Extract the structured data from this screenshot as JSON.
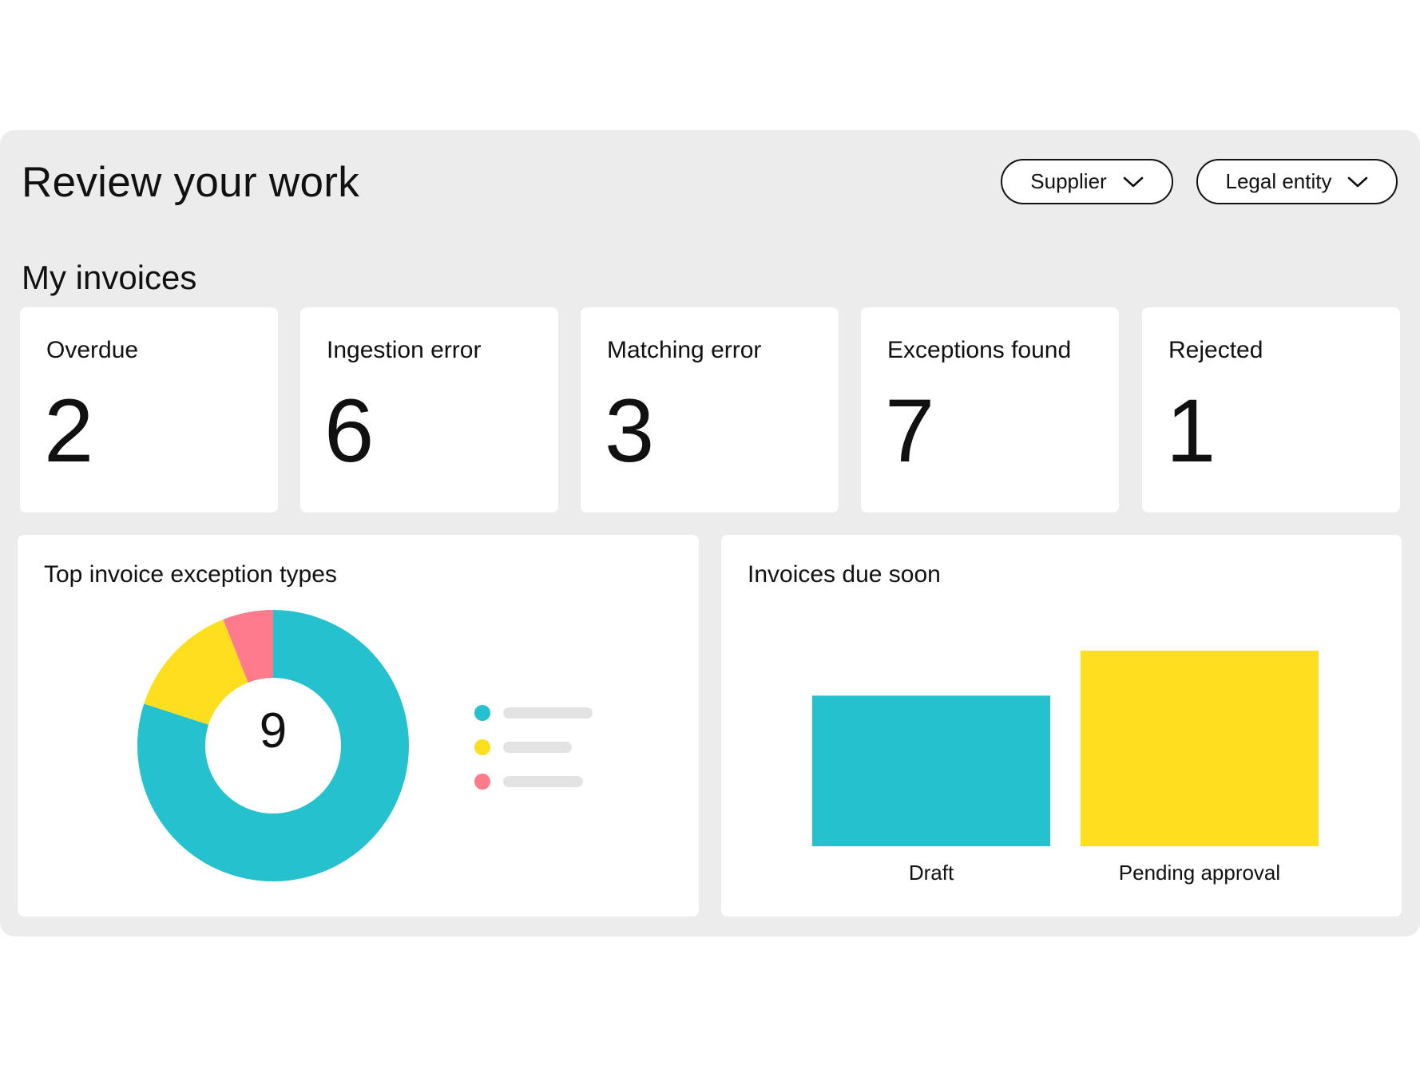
{
  "header": {
    "title": "Review your work",
    "filters": [
      {
        "label": "Supplier",
        "icon": "chevron-down-icon"
      },
      {
        "label": "Legal entity",
        "icon": "chevron-down-icon"
      }
    ]
  },
  "my_invoices": {
    "title": "My invoices",
    "cards": [
      {
        "label": "Overdue",
        "value": "2"
      },
      {
        "label": "Ingestion error",
        "value": "6"
      },
      {
        "label": "Matching error",
        "value": "3"
      },
      {
        "label": "Exceptions found",
        "value": "7"
      },
      {
        "label": "Rejected",
        "value": "1"
      }
    ]
  },
  "colors": {
    "teal": "#26c1ce",
    "yellow": "#fedf20",
    "pink": "#fd7b8a",
    "legend_line": "#e3e3e3",
    "panel": "#ececec"
  },
  "chart_data": [
    {
      "type": "pie",
      "title": "Top invoice exception types",
      "center_label": "9",
      "slices": [
        {
          "value": 0.8,
          "color": "#26c1ce"
        },
        {
          "value": 0.14,
          "color": "#fedf20"
        },
        {
          "value": 0.06,
          "color": "#fd7b8a"
        }
      ],
      "legend": "right"
    },
    {
      "type": "bar",
      "title": "Invoices due soon",
      "categories": [
        "Draft",
        "Pending approval"
      ],
      "values": [
        0.77,
        1.0
      ],
      "colors": [
        "#26c1ce",
        "#fedf20"
      ],
      "ylim": [
        0,
        1
      ]
    }
  ]
}
